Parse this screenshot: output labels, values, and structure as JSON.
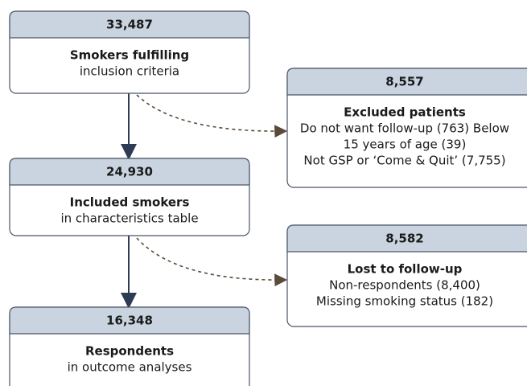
{
  "nodes": [
    {
      "count": "33,487",
      "title": "Smokers fulfilling",
      "lines": [
        "inclusion criteria"
      ]
    },
    {
      "count": "24,930",
      "title": "Included smokers",
      "lines": [
        "in characteristics table"
      ]
    },
    {
      "count": "16,348",
      "title": "Respondents",
      "lines": [
        "in outcome analyses"
      ]
    },
    {
      "count": "8,557",
      "title": "Excluded patients",
      "lines": [
        "Do not want follow-up (763) Below",
        "15 years of age (39)",
        "Not GSP or ‘Come & Quit’ (7,755)"
      ]
    },
    {
      "count": "8,582",
      "title": "Lost to follow-up",
      "lines": [
        "Non-respondents (8,400)",
        "Missing smoking status (182)"
      ]
    }
  ]
}
